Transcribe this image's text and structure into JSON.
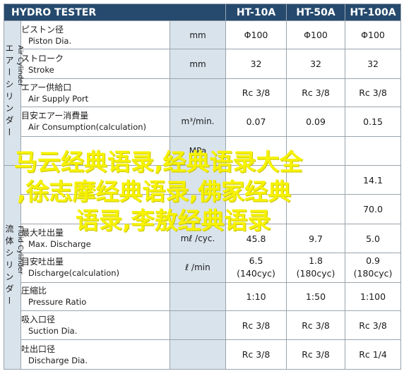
{
  "header": {
    "title": "HYDRO TESTER",
    "models": [
      "HT-10A",
      "HT-50A",
      "HT-100A"
    ]
  },
  "groups": {
    "air": {
      "jp": "エアーシリンダー",
      "en": "Air Cylinder"
    },
    "fluid": {
      "jp": "流体シリンダー",
      "en": "Fluid Cylinder"
    }
  },
  "rows": [
    {
      "jp": "ピストン径",
      "en": "Piston Dia.",
      "unit": "mm",
      "values": [
        "Φ100",
        "Φ100",
        "Φ100"
      ]
    },
    {
      "jp": "ストローク",
      "en": "Stroke",
      "unit": "mm",
      "values": [
        "32",
        "32",
        "32"
      ]
    },
    {
      "jp": "エアー供給口",
      "en": "Air Supply Port",
      "unit": "",
      "values": [
        "Rc 3/8",
        "Rc 3/8",
        "Rc 3/8"
      ]
    },
    {
      "jp": "目安エアー消費量",
      "en": "Air Consumption(calculation)",
      "unit": "m³/min.",
      "values": [
        "0.07",
        "0.09",
        "0.15"
      ]
    },
    {
      "jp": "",
      "en": "",
      "unit": "MPa",
      "values": [
        "",
        "",
        ""
      ]
    },
    {
      "jp": "",
      "en": "",
      "unit": "",
      "values": [
        "",
        "",
        "14.1"
      ]
    },
    {
      "jp": "",
      "en": "",
      "unit": "",
      "values": [
        "",
        "",
        "70.0"
      ]
    },
    {
      "jp": "最大吐出量",
      "en": "Max. Discharge",
      "unit": "mℓ /cyc.",
      "values": [
        "45.8",
        "9.7",
        "5.0"
      ]
    },
    {
      "jp": "目安吐出量",
      "en": "Discharge(calculation)",
      "unit": "ℓ /min",
      "values": [
        "6.5\n(140cyc)",
        "1.8\n(180cyc)",
        "0.9\n(180cyc)"
      ]
    },
    {
      "jp": "圧縮比",
      "en": "Pressure Ratio",
      "unit": "",
      "values": [
        "1:10",
        "1:50",
        "1:100"
      ]
    },
    {
      "jp": "吸入口径",
      "en": "Suction Dia.",
      "unit": "",
      "values": [
        "Rc 3/8",
        "Rc 3/8",
        "Rc 3/8"
      ]
    },
    {
      "jp": "吐出口径",
      "en": "Discharge Dia.",
      "unit": "",
      "values": [
        "Rc 3/8",
        "Rc 3/8",
        "Rc 1/4"
      ]
    }
  ],
  "watermark": {
    "line1": "马云经典语录,经典语录大全",
    "line2": ",徐志摩经典语录,佛家经典",
    "line3": "语录,李敖经典语录"
  }
}
